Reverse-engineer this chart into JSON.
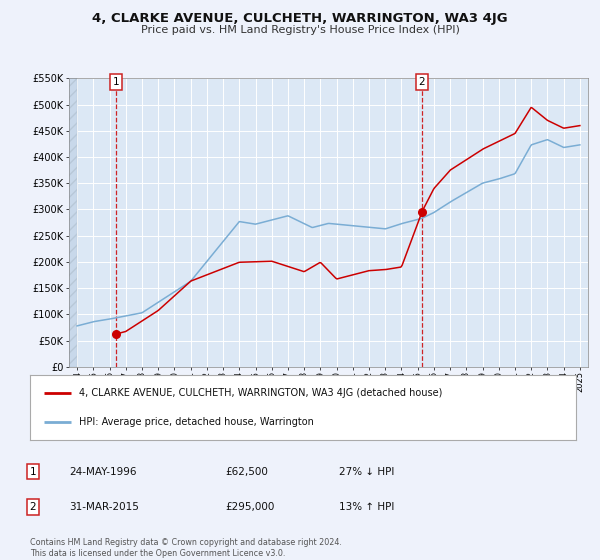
{
  "title": "4, CLARKE AVENUE, CULCHETH, WARRINGTON, WA3 4JG",
  "subtitle": "Price paid vs. HM Land Registry's House Price Index (HPI)",
  "background_color": "#eef2fb",
  "plot_bg_color": "#dce8f5",
  "grid_color": "#ffffff",
  "sale1_date": 1996.39,
  "sale1_price": 62500,
  "sale2_date": 2015.25,
  "sale2_price": 295000,
  "ylim": [
    0,
    550000
  ],
  "xlim": [
    1993.5,
    2025.5
  ],
  "legend_label1": "4, CLARKE AVENUE, CULCHETH, WARRINGTON, WA3 4JG (detached house)",
  "legend_label2": "HPI: Average price, detached house, Warrington",
  "note1_num": "1",
  "note1_date": "24-MAY-1996",
  "note1_price": "£62,500",
  "note1_hpi": "27% ↓ HPI",
  "note2_num": "2",
  "note2_date": "31-MAR-2015",
  "note2_price": "£295,000",
  "note2_hpi": "13% ↑ HPI",
  "footer": "Contains HM Land Registry data © Crown copyright and database right 2024.\nThis data is licensed under the Open Government Licence v3.0.",
  "red_color": "#cc0000",
  "blue_color": "#7aadd4",
  "hatch_color": "#c8d8ea"
}
